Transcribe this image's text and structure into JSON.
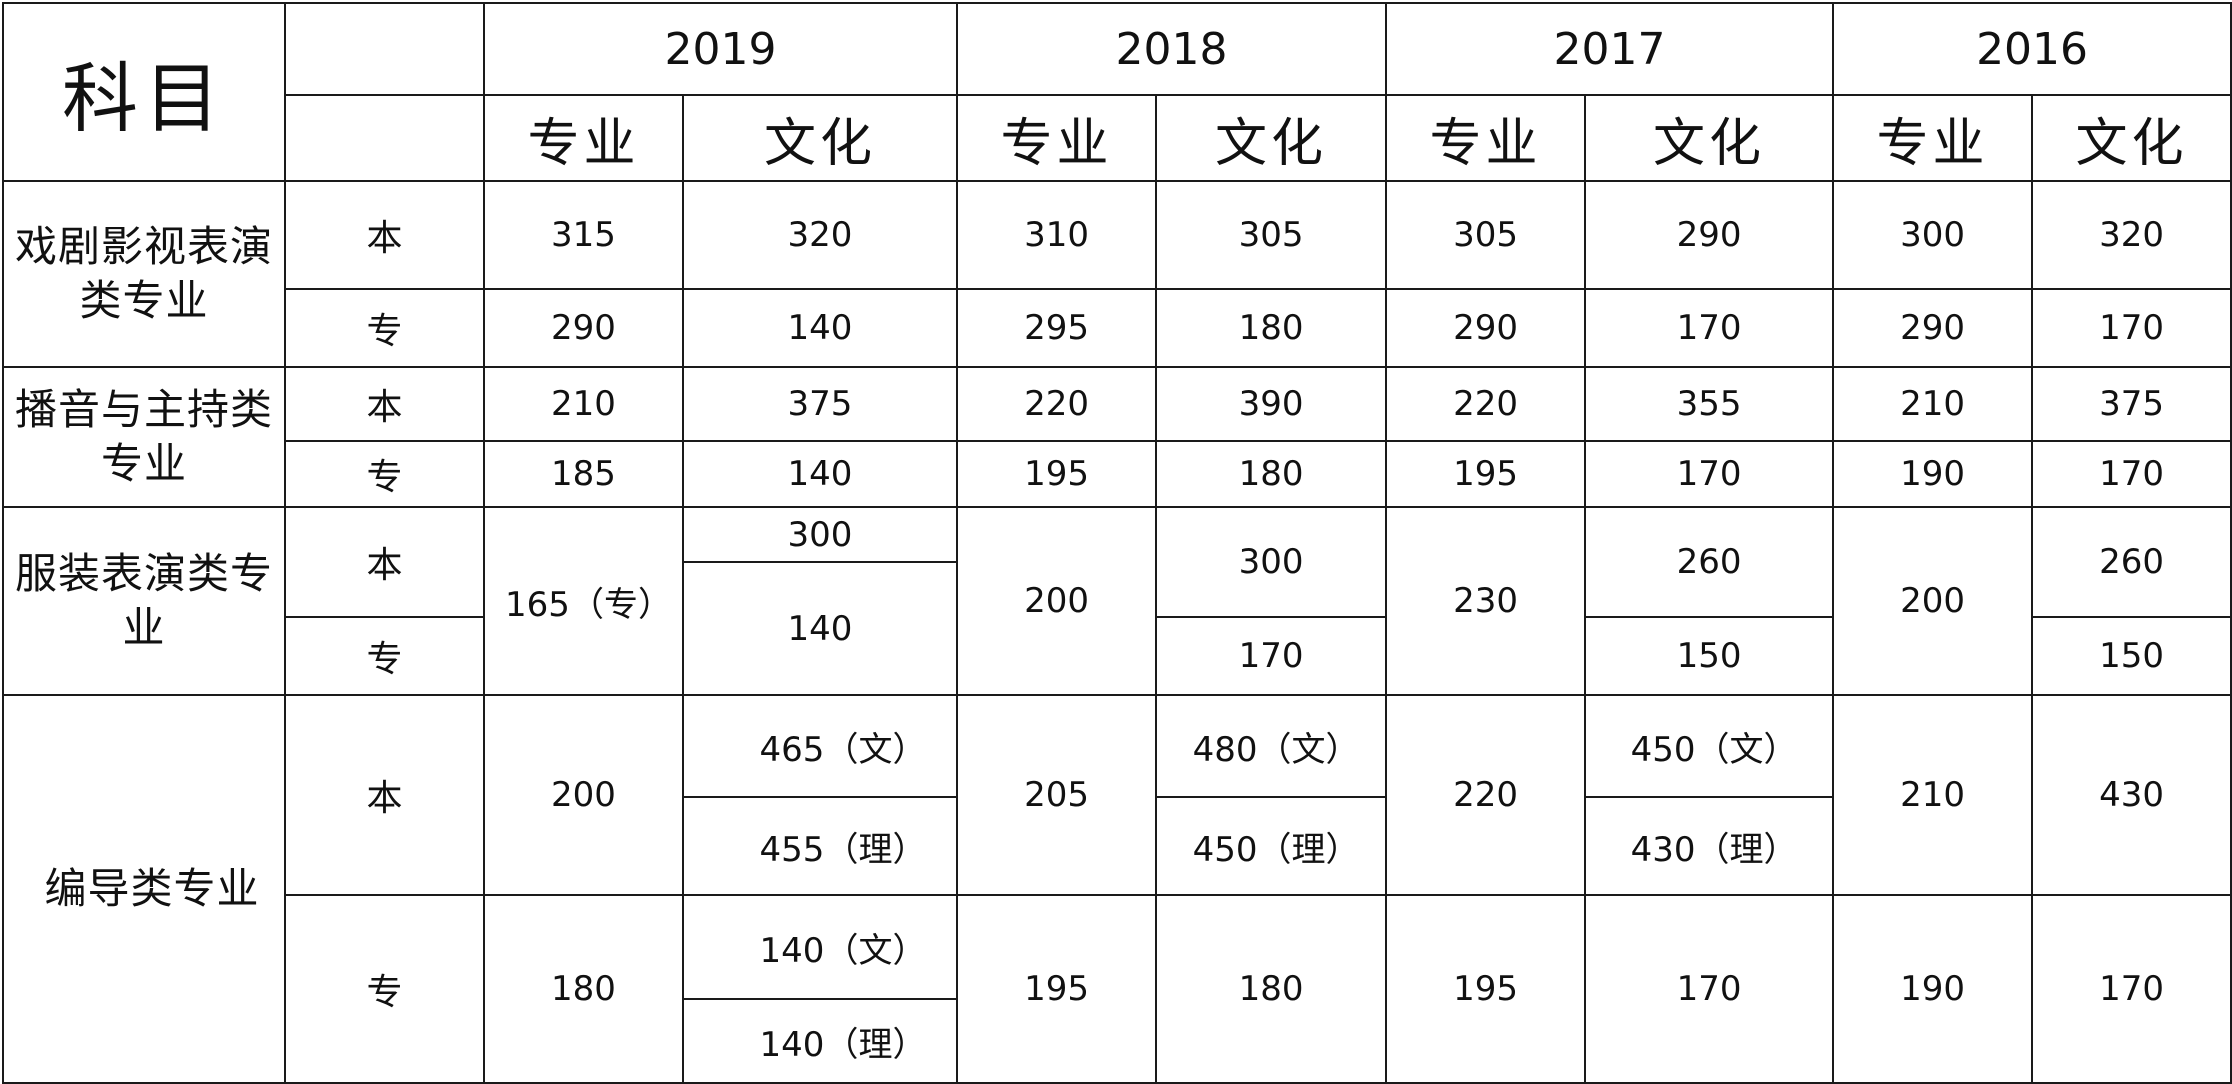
{
  "header": {
    "subject": "科目",
    "years": [
      "2019",
      "2018",
      "2017",
      "2016"
    ],
    "zhuanye": "专业",
    "wenhua": "文化"
  },
  "level": {
    "ben": "本",
    "zhuan": "专"
  },
  "rows": {
    "drama": {
      "category": "戏剧影视表演类专业",
      "ben": [
        "315",
        "320",
        "310",
        "305",
        "305",
        "290",
        "300",
        "320"
      ],
      "zhuan": [
        "290",
        "140",
        "295",
        "180",
        "290",
        "170",
        "290",
        "170"
      ]
    },
    "broadcast": {
      "category": "播音与主持类专业",
      "ben": [
        "210",
        "375",
        "220",
        "390",
        "220",
        "355",
        "210",
        "375"
      ],
      "zhuan": [
        "185",
        "140",
        "195",
        "180",
        "195",
        "170",
        "190",
        "170"
      ]
    },
    "costume": {
      "category": "服装表演类专业",
      "y2019_zhuanye": "165（专）",
      "y2019_wenhua_top": "300",
      "y2019_wenhua_bottom": "140",
      "y2018_zhuanye": "200",
      "y2018_wenhua_ben": "300",
      "y2018_wenhua_zhuan": "170",
      "y2017_zhuanye": "230",
      "y2017_wenhua_ben": "260",
      "y2017_wenhua_zhuan": "150",
      "y2016_zhuanye": "200",
      "y2016_wenhua_ben": "260",
      "y2016_wenhua_zhuan": "150"
    },
    "directing": {
      "category": "编导类专业",
      "ben": {
        "y2019_zhuanye": "200",
        "y2019_wen": "465（文）",
        "y2019_li": "455（理）",
        "y2018_zhuanye": "205",
        "y2018_wen": "480（文）",
        "y2018_li": "450（理）",
        "y2017_zhuanye": "220",
        "y2017_wen": "450（文）",
        "y2017_li": "430（理）",
        "y2016_zhuanye": "210",
        "y2016_wenhua": "430"
      },
      "zhuan": {
        "y2019_zhuanye": "180",
        "y2019_wen": "140（文）",
        "y2019_li": "140（理）",
        "y2018_zhuanye": "195",
        "y2018_wenhua": "180",
        "y2017_zhuanye": "195",
        "y2017_wenhua": "170",
        "y2016_zhuanye": "190",
        "y2016_wenhua": "170"
      }
    }
  }
}
